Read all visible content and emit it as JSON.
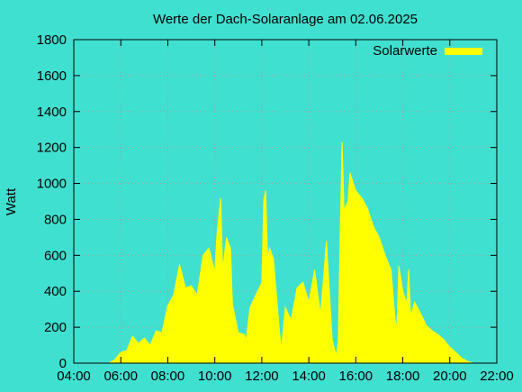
{
  "chart_data": {
    "type": "area",
    "title": "Werte der Dach-Solaranlage am 02.06.2025",
    "xlabel": "",
    "ylabel": "Watt",
    "xlim": [
      "04:00",
      "22:00"
    ],
    "ylim": [
      0,
      1800
    ],
    "x_ticks": [
      "04:00",
      "06:00",
      "08:00",
      "10:00",
      "12:00",
      "14:00",
      "16:00",
      "18:00",
      "20:00",
      "22:00"
    ],
    "y_ticks": [
      "0",
      "200",
      "400",
      "600",
      "800",
      "1000",
      "1200",
      "1400",
      "1600",
      "1800"
    ],
    "grid": true,
    "legend_position": "top-right",
    "background_color": "#40e0d0",
    "series": [
      {
        "name": "Solarwerte",
        "color": "#ffff00",
        "points": [
          [
            "05:30",
            0
          ],
          [
            "05:45",
            20
          ],
          [
            "06:00",
            60
          ],
          [
            "06:15",
            70
          ],
          [
            "06:30",
            150
          ],
          [
            "06:45",
            110
          ],
          [
            "07:00",
            140
          ],
          [
            "07:15",
            100
          ],
          [
            "07:30",
            180
          ],
          [
            "07:45",
            170
          ],
          [
            "08:00",
            320
          ],
          [
            "08:15",
            380
          ],
          [
            "08:30",
            550
          ],
          [
            "08:45",
            420
          ],
          [
            "09:00",
            430
          ],
          [
            "09:15",
            380
          ],
          [
            "09:30",
            600
          ],
          [
            "09:45",
            640
          ],
          [
            "10:00",
            510
          ],
          [
            "10:05",
            700
          ],
          [
            "10:15",
            920
          ],
          [
            "10:20",
            520
          ],
          [
            "10:30",
            700
          ],
          [
            "10:40",
            640
          ],
          [
            "10:45",
            330
          ],
          [
            "11:00",
            170
          ],
          [
            "11:15",
            160
          ],
          [
            "11:20",
            130
          ],
          [
            "11:30",
            310
          ],
          [
            "11:45",
            380
          ],
          [
            "12:00",
            450
          ],
          [
            "12:05",
            910
          ],
          [
            "12:10",
            960
          ],
          [
            "12:15",
            580
          ],
          [
            "12:20",
            640
          ],
          [
            "12:30",
            580
          ],
          [
            "12:45",
            180
          ],
          [
            "12:50",
            80
          ],
          [
            "13:00",
            310
          ],
          [
            "13:15",
            240
          ],
          [
            "13:30",
            420
          ],
          [
            "13:45",
            450
          ],
          [
            "14:00",
            340
          ],
          [
            "14:15",
            520
          ],
          [
            "14:30",
            270
          ],
          [
            "14:45",
            680
          ],
          [
            "15:00",
            130
          ],
          [
            "15:10",
            40
          ],
          [
            "15:15",
            120
          ],
          [
            "15:20",
            700
          ],
          [
            "15:25",
            1230
          ],
          [
            "15:30",
            850
          ],
          [
            "15:40",
            900
          ],
          [
            "15:45",
            1060
          ],
          [
            "16:00",
            960
          ],
          [
            "16:15",
            920
          ],
          [
            "16:30",
            860
          ],
          [
            "16:45",
            760
          ],
          [
            "17:00",
            700
          ],
          [
            "17:15",
            600
          ],
          [
            "17:30",
            520
          ],
          [
            "17:40",
            250
          ],
          [
            "17:45",
            200
          ],
          [
            "17:50",
            540
          ],
          [
            "18:00",
            400
          ],
          [
            "18:10",
            330
          ],
          [
            "18:15",
            520
          ],
          [
            "18:20",
            260
          ],
          [
            "18:30",
            340
          ],
          [
            "18:45",
            280
          ],
          [
            "19:00",
            210
          ],
          [
            "19:15",
            180
          ],
          [
            "19:30",
            160
          ],
          [
            "19:45",
            130
          ],
          [
            "20:00",
            90
          ],
          [
            "20:15",
            60
          ],
          [
            "20:30",
            30
          ],
          [
            "20:45",
            10
          ],
          [
            "21:00",
            0
          ]
        ]
      }
    ]
  }
}
